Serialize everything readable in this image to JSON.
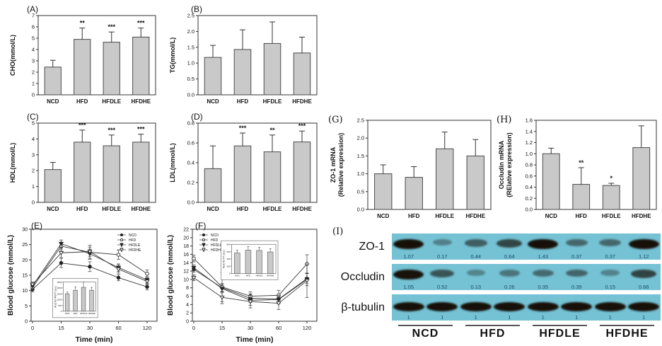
{
  "colors": {
    "bar_fill": "#c9c9c9",
    "bar_stroke": "#4a4a4a",
    "axis": "#333333",
    "line": "#3a3a3a",
    "membrane": "#74c2d4",
    "band": "#171008",
    "density_text": "#1d4d6b"
  },
  "chart_data": [
    {
      "panel": "(A)",
      "type": "bar",
      "ylabel": "CHO(mmol/L)",
      "categories": [
        "NCD",
        "HFD",
        "HFDLE",
        "HFDHE"
      ],
      "values": [
        2.45,
        4.9,
        4.65,
        5.1
      ],
      "errors": [
        0.6,
        1.0,
        0.9,
        0.8
      ],
      "sig": [
        "",
        "**",
        "***",
        "***"
      ],
      "ylim": [
        0,
        7
      ],
      "ystep": 1,
      "ydec": 0
    },
    {
      "panel": "(B)",
      "type": "bar",
      "ylabel": "TG(mmol/L)",
      "categories": [
        "NCD",
        "HFD",
        "HFDLE",
        "HFDHE"
      ],
      "values": [
        1.18,
        1.43,
        1.62,
        1.32
      ],
      "errors": [
        0.38,
        0.62,
        0.68,
        0.5
      ],
      "sig": [
        "",
        "",
        "",
        ""
      ],
      "ylim": [
        0,
        2.5
      ],
      "ystep": 0.5,
      "ydec": 1
    },
    {
      "panel": "(C)",
      "type": "bar",
      "ylabel": "HDL(mmol/L)",
      "categories": [
        "NCD",
        "HFD",
        "HFDLE",
        "HFDHE"
      ],
      "values": [
        2.07,
        3.8,
        3.57,
        3.8
      ],
      "errors": [
        0.45,
        0.76,
        0.68,
        0.5
      ],
      "sig": [
        "",
        "***",
        "***",
        "***"
      ],
      "ylim": [
        0,
        5
      ],
      "ystep": 1,
      "ydec": 0
    },
    {
      "panel": "(D)",
      "type": "bar",
      "ylabel": "LDL(mmol/L)",
      "categories": [
        "NCD",
        "HFD",
        "HFDLE",
        "HFDHE"
      ],
      "values": [
        0.34,
        0.57,
        0.51,
        0.61
      ],
      "errors": [
        0.23,
        0.13,
        0.17,
        0.11
      ],
      "sig": [
        "",
        "***",
        "**",
        "***"
      ],
      "ylim": [
        0,
        0.8
      ],
      "ystep": 0.2,
      "ydec": 1
    },
    {
      "panel": "(E)",
      "type": "line",
      "xlabel": "Time (min)",
      "ylabel": "Blood glucose (mmol/L)",
      "x": [
        "0",
        "15",
        "30",
        "60",
        "120"
      ],
      "ylim": [
        0,
        30
      ],
      "ystep": 5,
      "ydec": 0,
      "legend_pos": "tr",
      "series": [
        {
          "name": "NCD",
          "marker": "circle-filled",
          "values": [
            10.4,
            19.0,
            17.8,
            14.2,
            11.2
          ],
          "errors": [
            0.8,
            1.5,
            1.6,
            1.0,
            1.0
          ]
        },
        {
          "name": "HFD",
          "marker": "circle-open",
          "values": [
            11.0,
            24.5,
            22.5,
            21.7,
            15.5
          ],
          "errors": [
            0.8,
            1.2,
            2.3,
            1.5,
            1.2
          ]
        },
        {
          "name": "HFDLE",
          "marker": "tri-filled",
          "values": [
            11.5,
            25.3,
            22.0,
            17.5,
            13.5
          ],
          "errors": [
            0.8,
            1.2,
            1.5,
            1.2,
            1.0
          ]
        },
        {
          "name": "HFDHE",
          "marker": "tri-open",
          "values": [
            12.0,
            22.3,
            22.7,
            17.0,
            13.0
          ],
          "errors": [
            0.8,
            1.5,
            1.5,
            1.3,
            1.0
          ]
        }
      ],
      "inset": {
        "ylabel": "AUC for IPGTT (a.u.)",
        "categories": [
          "NCD",
          "HFD",
          "HFDLE",
          "HFDHE"
        ],
        "values": [
          1500,
          1800,
          2050,
          1800
        ],
        "errors": [
          150,
          300,
          450,
          250
        ],
        "ylim": [
          0,
          2500
        ],
        "ystep": 500,
        "pos": [
          0.3,
          0.47,
          0.58,
          0.78
        ]
      }
    },
    {
      "panel": "(F)",
      "type": "line",
      "xlabel": "Time (min)",
      "ylabel": "Blood glucose (mmol/L)",
      "x": [
        "0",
        "15",
        "30",
        "60",
        "120"
      ],
      "ylim": [
        0,
        22
      ],
      "ystep": 2,
      "ydec": 0,
      "legend_pos": "tl",
      "series": [
        {
          "name": "NCD",
          "marker": "circle-filled",
          "values": [
            12.4,
            8.0,
            5.5,
            5.3,
            10.2
          ],
          "errors": [
            0.7,
            1.0,
            1.0,
            1.0,
            1.2
          ]
        },
        {
          "name": "HFD",
          "marker": "circle-open",
          "values": [
            15.0,
            8.2,
            6.0,
            6.2,
            13.7
          ],
          "errors": [
            0.8,
            3.5,
            1.0,
            1.2,
            2.2
          ]
        },
        {
          "name": "HFDLE",
          "marker": "tri-filled",
          "values": [
            12.8,
            7.8,
            5.0,
            5.2,
            10.0
          ],
          "errors": [
            0.7,
            1.0,
            1.2,
            1.0,
            1.5
          ]
        },
        {
          "name": "HFDHE",
          "marker": "tri-open",
          "values": [
            10.4,
            5.7,
            4.7,
            4.3,
            9.7
          ],
          "errors": [
            0.7,
            1.5,
            1.5,
            1.5,
            4.0
          ]
        }
      ],
      "inset": {
        "ylabel": "AUC for ITT (a.u.)",
        "categories": [
          "NCD",
          "HFD",
          "HFDLE",
          "HFDHE"
        ],
        "values": [
          560,
          640,
          630,
          590
        ],
        "errors": [
          80,
          100,
          90,
          90
        ],
        "ylim": [
          0,
          800
        ],
        "ystep": 200,
        "pos": [
          0.35,
          0.17,
          0.7,
          0.48
        ]
      }
    },
    {
      "panel": "(G)",
      "type": "bar",
      "ylabel": [
        "ZO-1 mRNA",
        "(Relative expression)"
      ],
      "categories": [
        "NCD",
        "HFD",
        "HFDLE",
        "HFDHE"
      ],
      "values": [
        1.0,
        0.9,
        1.7,
        1.5
      ],
      "errors": [
        0.25,
        0.3,
        0.47,
        0.46
      ],
      "sig": [
        "",
        "",
        "",
        ""
      ],
      "ylim": [
        0,
        2.5
      ],
      "ystep": 0.5,
      "ydec": 1
    },
    {
      "panel": "(H)",
      "type": "bar",
      "ylabel": [
        "Occludin mRNA",
        "(RElative expression)"
      ],
      "categories": [
        "NCD",
        "HFD",
        "HFDLE",
        "HFDHE"
      ],
      "values": [
        1.0,
        0.45,
        0.43,
        1.11
      ],
      "errors": [
        0.1,
        0.3,
        0.04,
        0.39
      ],
      "sig": [
        "",
        "**",
        "*",
        ""
      ],
      "ylim": [
        0,
        1.6
      ],
      "ystep": 0.2,
      "ydec": 1
    },
    {
      "panel": "(I)",
      "type": "blot",
      "rows": [
        {
          "protein": "ZO-1",
          "band_densities": [
            "1.07",
            "0.17",
            "0.44",
            "0.64",
            "1.43",
            "0.37",
            "0.37",
            "1.12"
          ]
        },
        {
          "protein": "Occludin",
          "band_densities": [
            "1.05",
            "0.52",
            "0.13",
            "0.26",
            "0.35",
            "0.39",
            "0.15",
            "0.66"
          ]
        },
        {
          "protein": "β-tubulin",
          "band_densities": [
            "1",
            "1",
            "1",
            "1",
            "1",
            "1",
            "1",
            "1"
          ]
        }
      ],
      "groups": [
        "NCD",
        "HFD",
        "HFDLE",
        "HFDHE"
      ]
    }
  ]
}
